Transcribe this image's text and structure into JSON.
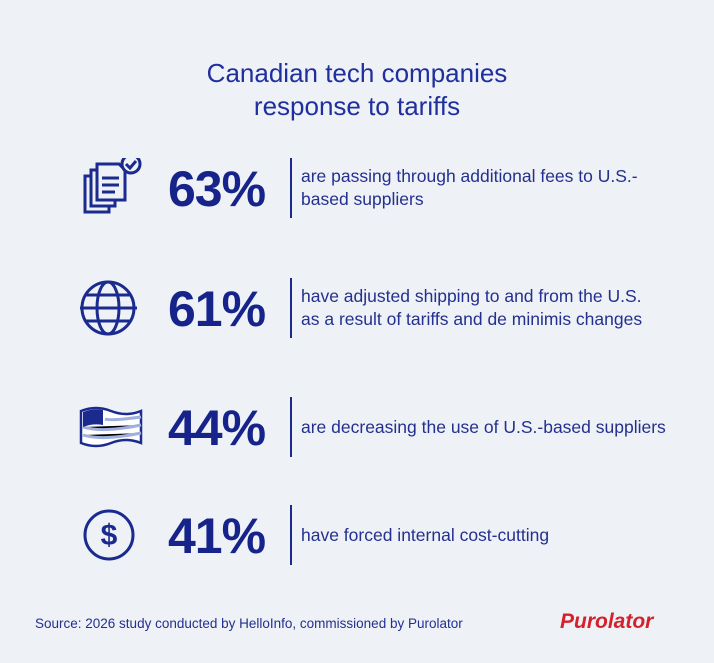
{
  "header": {
    "title_lines": [
      "Canadian tech companies",
      "response to tariffs"
    ]
  },
  "stats": [
    {
      "value": "63%",
      "lines": [
        "are passing through additional fees to U.S.-",
        "based suppliers"
      ]
    },
    {
      "value": "61%",
      "lines": [
        "have adjusted shipping to and from the U.S.",
        "as a result of tariffs and de minimis changes"
      ]
    },
    {
      "value": "44%",
      "lines": [
        "are decreasing the use of U.S.-based suppliers"
      ]
    },
    {
      "value": "41%",
      "lines": [
        "have forced internal cost-cutting"
      ]
    }
  ],
  "footer": {
    "source": "Source: 2026 study conducted by HelloInfo, commissioned by Purolator",
    "logo": "Purolator"
  }
}
